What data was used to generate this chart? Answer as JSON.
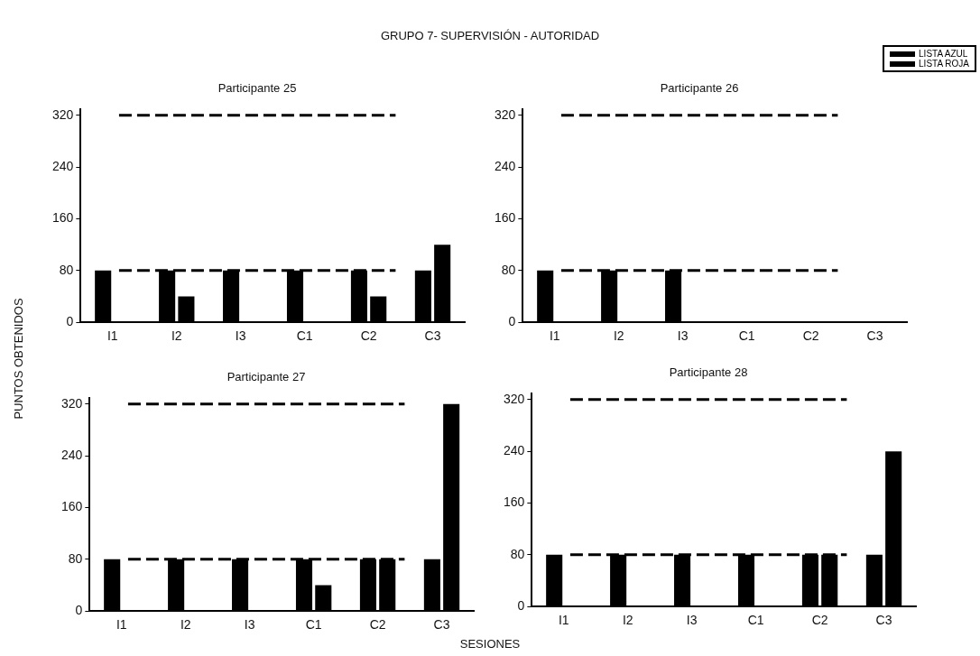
{
  "chart_data": [
    {
      "type": "bar",
      "title": "Participante 25",
      "annotations": [
        "GRUPO 7- SUPERVISIÓN - AUTORIDAD"
      ],
      "categories": [
        "I1",
        "I2",
        "I3",
        "C1",
        "C2",
        "C3"
      ],
      "series": [
        {
          "name": "LISTA AZUL",
          "color": "#000000",
          "values": [
            80,
            80,
            80,
            80,
            80,
            80
          ]
        },
        {
          "name": "LISTA ROJA",
          "color": "#000000",
          "values": [
            0,
            40,
            0,
            0,
            40,
            120
          ]
        }
      ],
      "ylim": [
        0,
        330
      ],
      "yticks": [
        0,
        80,
        160,
        240,
        320
      ],
      "grid": false,
      "legend": "top right",
      "ref_lines": [
        {
          "axis": "y",
          "value": 320,
          "color": "#000000",
          "line_style": "dashed"
        },
        {
          "axis": "y",
          "value": 80,
          "color": "#000000",
          "line_style": "dashed"
        }
      ]
    },
    {
      "type": "bar",
      "title": "Participante 26",
      "categories": [
        "I1",
        "I2",
        "I3",
        "C1",
        "C2",
        "C3"
      ],
      "series": [
        {
          "color": "#000000",
          "values": [
            80,
            80,
            80,
            0,
            0,
            0
          ]
        },
        {
          "color": "#000000",
          "values": [
            0,
            0,
            0,
            0,
            0,
            0
          ]
        }
      ],
      "ylim": [
        0,
        330
      ],
      "yticks": [
        0,
        80,
        160,
        240,
        320
      ],
      "grid": false,
      "ref_lines": [
        {
          "axis": "y",
          "value": 320,
          "color": "#000000",
          "line_style": "dashed"
        },
        {
          "axis": "y",
          "value": 80,
          "color": "#000000",
          "line_style": "dashed"
        }
      ]
    },
    {
      "type": "bar",
      "title": "Participante 27",
      "ylabel": "PUNTOS OBTENIDOS",
      "categories": [
        "I1",
        "I2",
        "I3",
        "C1",
        "C2",
        "C3"
      ],
      "series": [
        {
          "color": "#000000",
          "values": [
            80,
            80,
            80,
            80,
            80,
            80
          ]
        },
        {
          "color": "#000000",
          "values": [
            0,
            0,
            0,
            40,
            80,
            320
          ]
        }
      ],
      "ylim": [
        0,
        330
      ],
      "yticks": [
        0,
        80,
        160,
        240,
        320
      ],
      "grid": false,
      "ref_lines": [
        {
          "axis": "y",
          "value": 320,
          "color": "#000000",
          "line_style": "dashed"
        },
        {
          "axis": "y",
          "value": 80,
          "color": "#000000",
          "line_style": "dashed"
        }
      ]
    },
    {
      "type": "bar",
      "title": "Participante 28",
      "xlabel": "SESIONES",
      "categories": [
        "I1",
        "I2",
        "I3",
        "C1",
        "C2",
        "C3"
      ],
      "series": [
        {
          "color": "#000000",
          "values": [
            80,
            80,
            80,
            80,
            80,
            80
          ]
        },
        {
          "color": "#000000",
          "values": [
            0,
            0,
            0,
            0,
            80,
            240
          ]
        }
      ],
      "ylim": [
        0,
        330
      ],
      "yticks": [
        0,
        80,
        160,
        240,
        320
      ],
      "grid": false,
      "ref_lines": [
        {
          "axis": "y",
          "value": 320,
          "color": "#000000",
          "line_style": "dashed"
        },
        {
          "axis": "y",
          "value": 80,
          "color": "#000000",
          "line_style": "dashed"
        }
      ]
    }
  ]
}
